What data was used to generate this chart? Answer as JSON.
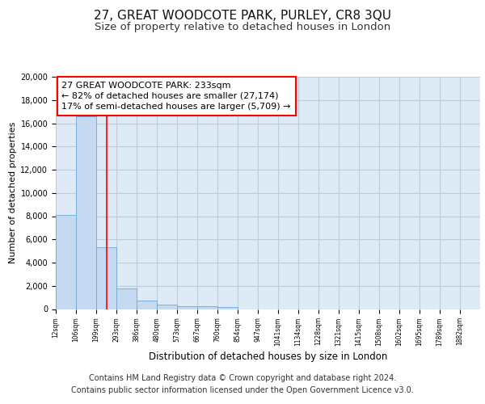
{
  "title_line1": "27, GREAT WOODCOTE PARK, PURLEY, CR8 3QU",
  "title_line2": "Size of property relative to detached houses in London",
  "xlabel": "Distribution of detached houses by size in London",
  "ylabel": "Number of detached properties",
  "bar_labels": [
    "12sqm",
    "106sqm",
    "199sqm",
    "293sqm",
    "386sqm",
    "480sqm",
    "573sqm",
    "667sqm",
    "760sqm",
    "854sqm",
    "947sqm",
    "1041sqm",
    "1134sqm",
    "1228sqm",
    "1321sqm",
    "1415sqm",
    "1508sqm",
    "1602sqm",
    "1695sqm",
    "1789sqm",
    "1882sqm"
  ],
  "bar_values": [
    8100,
    16600,
    5300,
    1750,
    750,
    350,
    270,
    220,
    170,
    0,
    0,
    0,
    0,
    0,
    0,
    0,
    0,
    0,
    0,
    0,
    0
  ],
  "bar_color": "#c5d9f0",
  "bar_edge_color": "#6fa8d4",
  "grid_color": "#b8cfe0",
  "background_color": "#deeaf5",
  "red_line_x": 2.5,
  "annotation_text": "27 GREAT WOODCOTE PARK: 233sqm\n← 82% of detached houses are smaller (27,174)\n17% of semi-detached houses are larger (5,709) →",
  "ylim": [
    0,
    20000
  ],
  "yticks": [
    0,
    2000,
    4000,
    6000,
    8000,
    10000,
    12000,
    14000,
    16000,
    18000,
    20000
  ],
  "footnote": "Contains HM Land Registry data © Crown copyright and database right 2024.\nContains public sector information licensed under the Open Government Licence v3.0.",
  "title_fontsize": 11,
  "subtitle_fontsize": 9.5,
  "annotation_fontsize": 8,
  "footnote_fontsize": 7
}
